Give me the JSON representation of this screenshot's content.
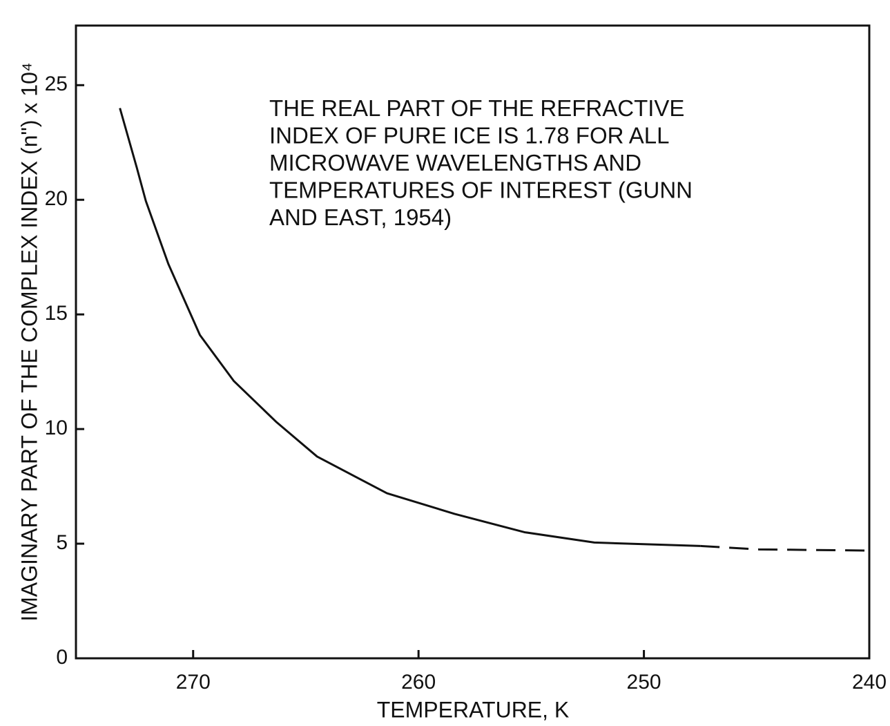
{
  "chart_data": {
    "type": "line",
    "xlabel": "TEMPERATURE, K",
    "ylabel": "IMAGINARY PART OF THE COMPLEX INDEX (n\") x 10⁴",
    "annotation": [
      "THE REAL PART OF THE REFRACTIVE",
      "INDEX OF PURE ICE IS 1.78 FOR ALL",
      "MICROWAVE WAVELENGTHS AND",
      "TEMPERATURES OF INTEREST (GUNN",
      "AND EAST, 1954)"
    ],
    "x": [
      273.25,
      272.5,
      272.1,
      271.1,
      269.7,
      268.2,
      266.3,
      264.5,
      261.4,
      258.4,
      255.3,
      252.2,
      247.5,
      244.9,
      240
    ],
    "series": [
      {
        "color": "#111111",
        "dashed": false,
        "values": [
          24.0,
          21.4,
          19.95,
          17.2,
          14.1,
          12.1,
          10.3,
          8.8,
          7.2,
          6.3,
          5.5,
          5.05,
          4.9,
          null,
          null
        ]
      },
      {
        "color": "#111111",
        "dashed": true,
        "values": [
          null,
          null,
          null,
          null,
          null,
          null,
          null,
          null,
          null,
          null,
          null,
          null,
          4.9,
          4.75,
          4.7
        ]
      }
    ],
    "xlim": [
      275.2,
      240
    ],
    "xticks": [
      270,
      260,
      250,
      240
    ],
    "ylim": [
      0,
      27.6
    ],
    "yticks": [
      0,
      5,
      10,
      15,
      20,
      25
    ]
  }
}
